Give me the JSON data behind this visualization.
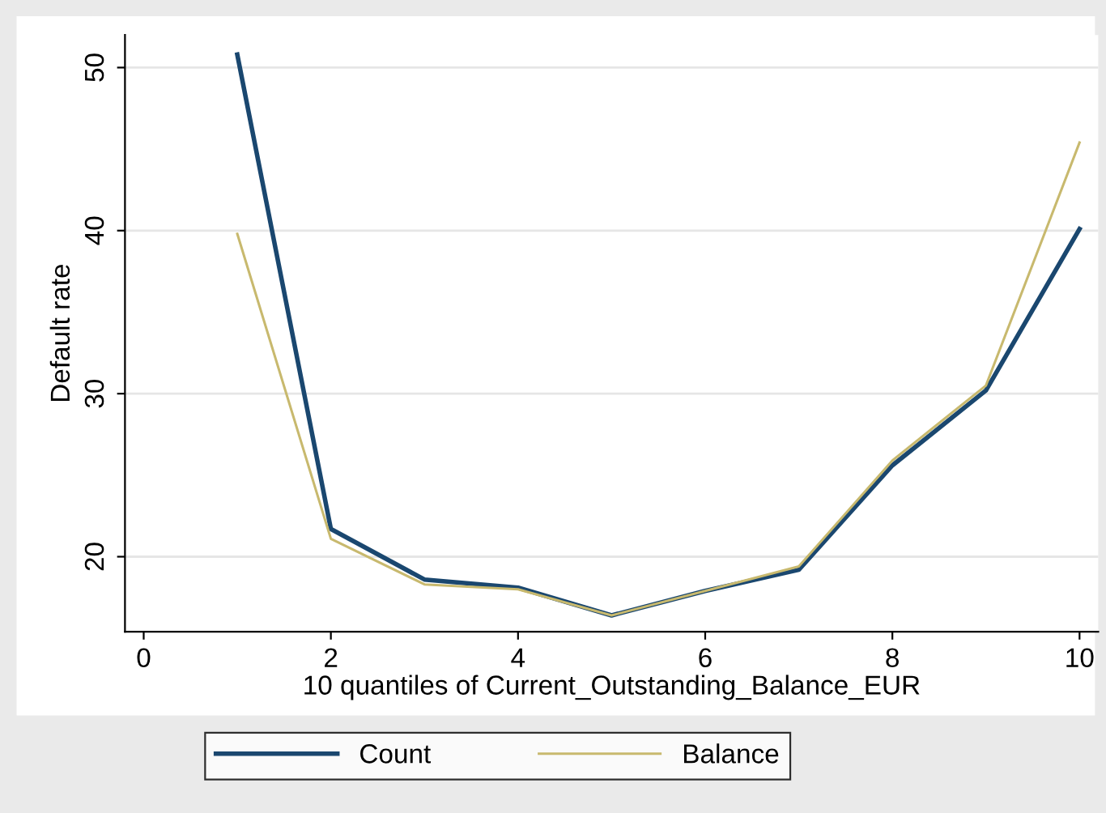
{
  "chart_data": {
    "type": "line",
    "xlabel": "10 quantiles of Current_Outstanding_Balance_EUR",
    "ylabel": "Default rate",
    "x": [
      1,
      2,
      3,
      4,
      5,
      6,
      7,
      8,
      9,
      10
    ],
    "series": [
      {
        "name": "Count",
        "color": "#1a476f",
        "values": [
          50.8,
          21.7,
          18.6,
          18.1,
          16.4,
          17.9,
          19.2,
          25.6,
          30.2,
          40.1
        ]
      },
      {
        "name": "Balance",
        "color": "#c8b96e",
        "values": [
          39.8,
          21.1,
          18.3,
          18.0,
          16.4,
          17.9,
          19.4,
          25.9,
          30.5,
          45.4
        ]
      }
    ],
    "xlim": [
      -0.2,
      10.2
    ],
    "xticks": [
      0,
      2,
      4,
      6,
      8,
      10
    ],
    "ylim": [
      15.4,
      52
    ],
    "yticks": [
      20,
      30,
      40,
      50
    ],
    "grid": "y",
    "legend": "bottom",
    "marker": "none",
    "line_style": "solid"
  }
}
